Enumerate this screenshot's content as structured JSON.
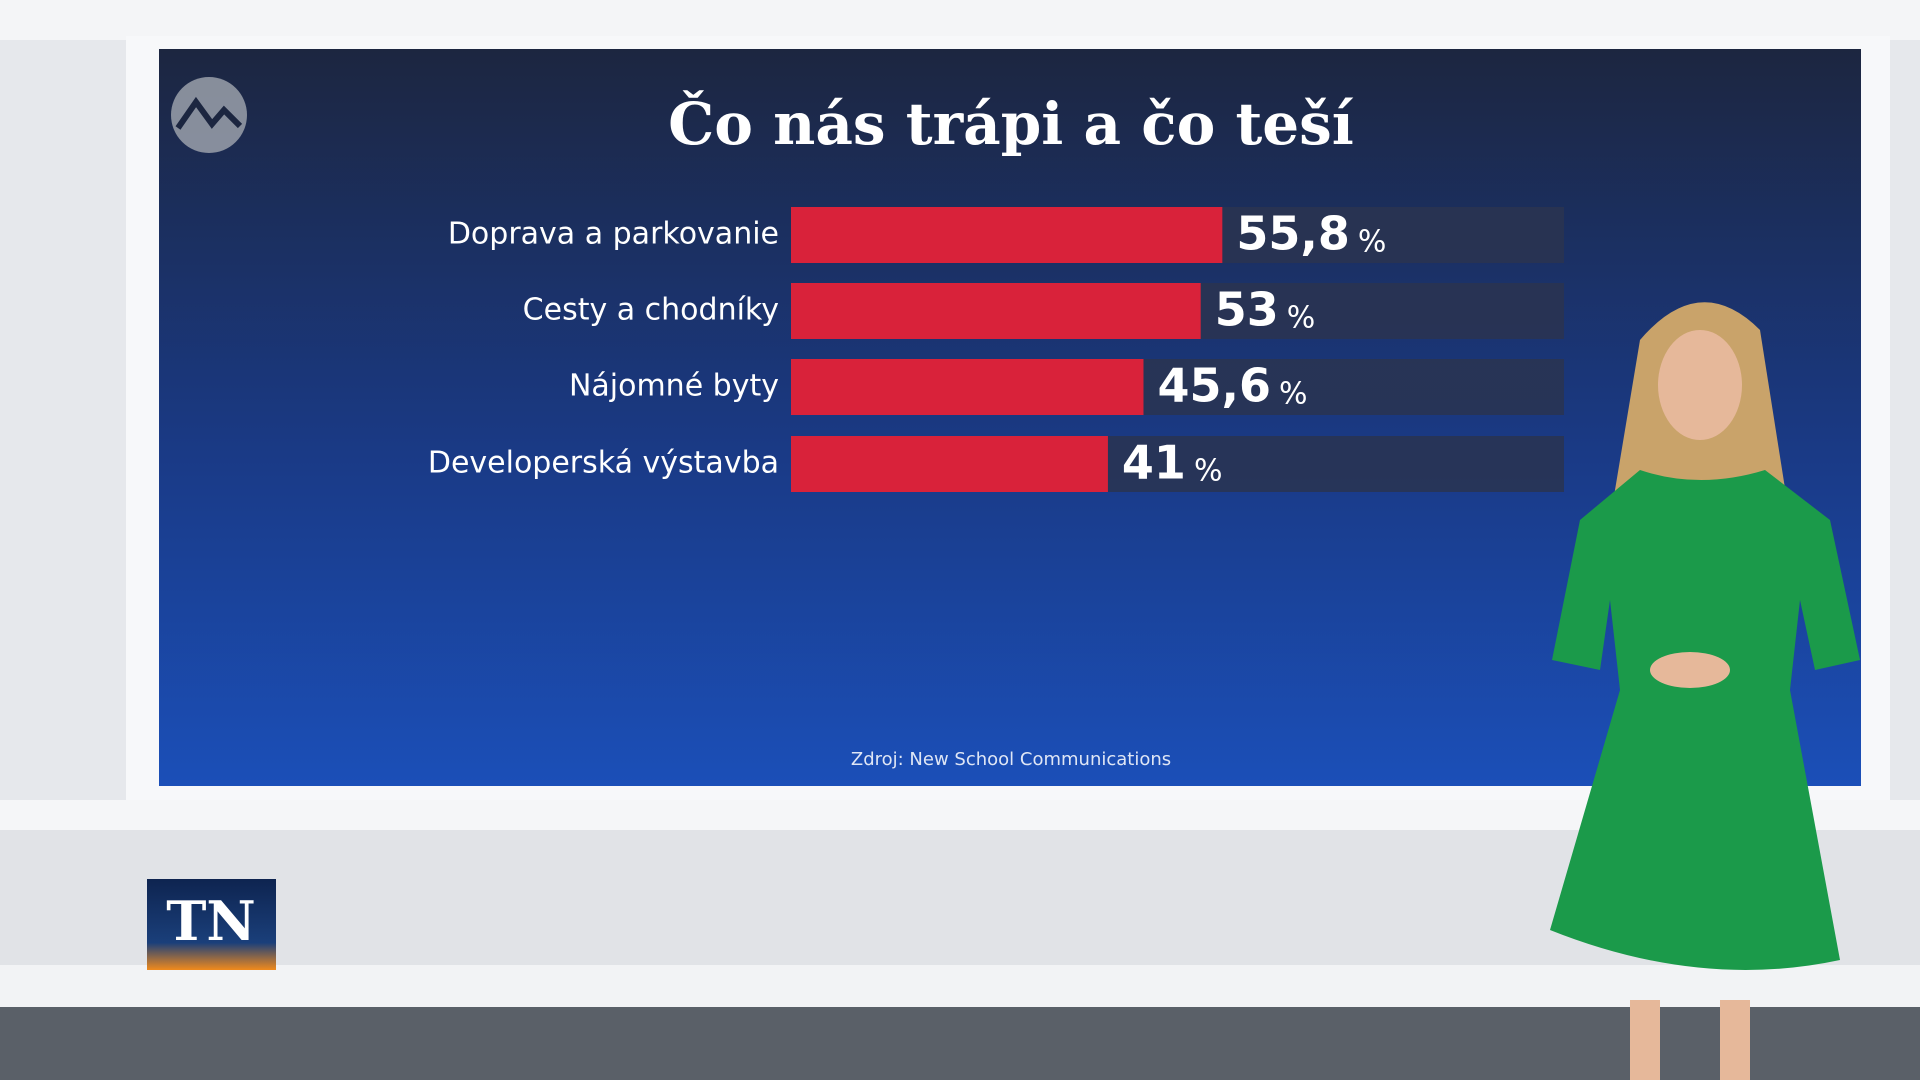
{
  "chart_data": {
    "type": "bar",
    "orientation": "horizontal",
    "title": "Čo nás trápi a čo teší",
    "categories": [
      "Doprava a parkovanie",
      "Cesty a chodníky",
      "Nájomné byty",
      "Developerská výstavba"
    ],
    "values": [
      55.8,
      53,
      45.6,
      41
    ],
    "value_labels": [
      "55,8",
      "53",
      "45,6",
      "41"
    ],
    "unit": "%",
    "color": "#d9223a",
    "track_color": "#2a3450",
    "xlim": [
      0,
      100
    ],
    "source": "Zdroj: New School Communications"
  },
  "channel_logo": "TN"
}
